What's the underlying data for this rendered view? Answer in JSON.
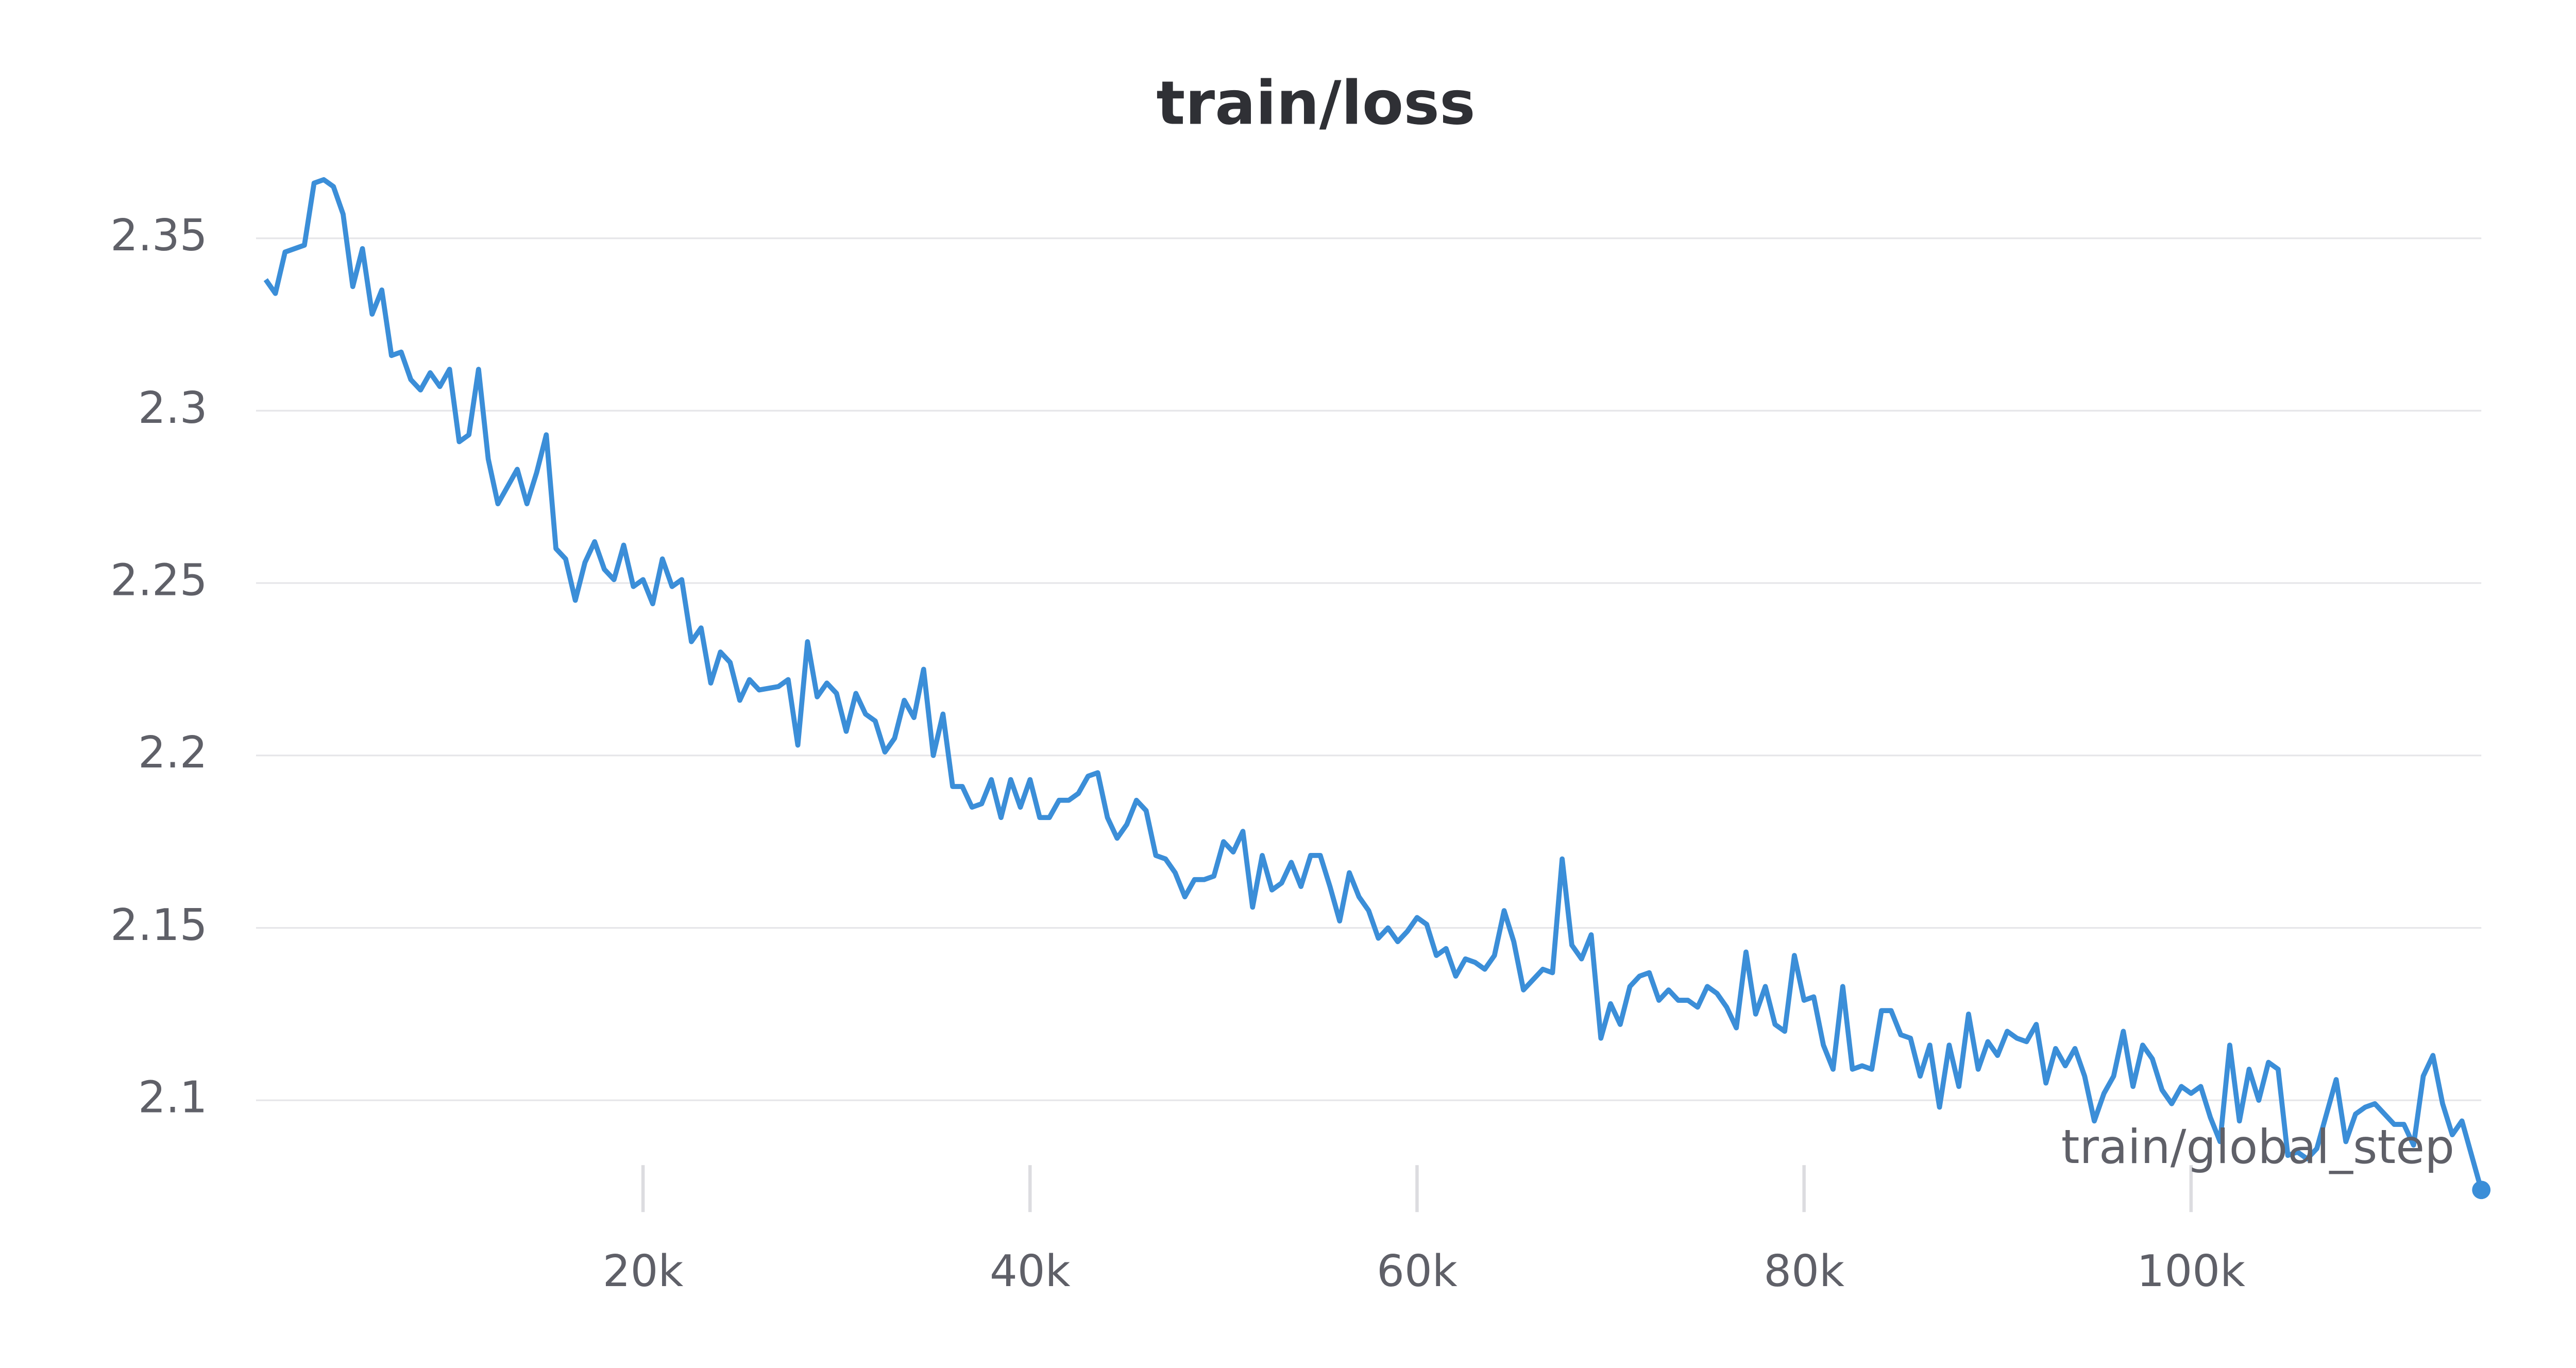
{
  "chart_data": {
    "type": "line",
    "title": "train/loss",
    "x_label": "train/global_step",
    "x": [
      500,
      1000,
      1500,
      2500,
      3000,
      3500,
      4000,
      4500,
      5000,
      5500,
      6000,
      6500,
      7000,
      7500,
      8000,
      8500,
      9000,
      9500,
      10000,
      10500,
      11000,
      11500,
      12000,
      12500,
      13000,
      13500,
      14000,
      14500,
      15000,
      15500,
      16000,
      16500,
      17000,
      17500,
      18000,
      18500,
      19000,
      19500,
      20000,
      20500,
      21000,
      21500,
      22000,
      22500,
      23000,
      23500,
      24000,
      24500,
      25000,
      25500,
      26000,
      27000,
      27500,
      28000,
      28500,
      29000,
      29500,
      30000,
      30500,
      31000,
      31500,
      32000,
      32500,
      33000,
      33500,
      34000,
      34500,
      35000,
      35500,
      36000,
      36500,
      37000,
      37500,
      38000,
      38500,
      39000,
      39500,
      40000,
      40500,
      41000,
      41500,
      42000,
      42500,
      43000,
      43500,
      44000,
      44500,
      45000,
      45500,
      46000,
      46500,
      47000,
      47500,
      48000,
      48500,
      49000,
      49500,
      50000,
      50500,
      51000,
      51500,
      52000,
      52500,
      53000,
      53500,
      54000,
      54500,
      55000,
      55500,
      56000,
      56500,
      57000,
      57500,
      58000,
      58500,
      59000,
      59500,
      60000,
      60500,
      61000,
      61500,
      62000,
      62500,
      63000,
      63500,
      64000,
      64500,
      65000,
      65500,
      66000,
      66500,
      67000,
      67500,
      68000,
      68500,
      69000,
      69500,
      70000,
      70500,
      71000,
      71500,
      72000,
      72500,
      73000,
      73500,
      74000,
      74500,
      75000,
      75500,
      76000,
      76500,
      77000,
      77500,
      78000,
      78500,
      79000,
      79500,
      80000,
      80500,
      81000,
      81500,
      82000,
      82500,
      83000,
      83500,
      84000,
      84500,
      85000,
      85500,
      86000,
      86500,
      87000,
      87500,
      88000,
      88500,
      89000,
      89500,
      90000,
      90500,
      91000,
      91500,
      92000,
      92500,
      93000,
      93500,
      94000,
      94500,
      95000,
      95500,
      96000,
      96500,
      97000,
      97500,
      98000,
      98500,
      99000,
      99500,
      100000,
      100500,
      101000,
      101500,
      102000,
      102500,
      103000,
      103500,
      104000,
      104500,
      105000,
      105500,
      106000,
      106500,
      107000,
      107500,
      108000,
      108500,
      109000,
      109500,
      110000,
      110500,
      111000,
      111500,
      112000,
      112500,
      113000,
      113500,
      114000,
      115000
    ],
    "series": [
      {
        "name": "train/loss",
        "color": "#3b8ed8",
        "values": [
          2.338,
          2.334,
          2.346,
          2.348,
          2.366,
          2.367,
          2.365,
          2.357,
          2.336,
          2.347,
          2.328,
          2.335,
          2.316,
          2.317,
          2.309,
          2.306,
          2.311,
          2.307,
          2.312,
          2.291,
          2.293,
          2.312,
          2.286,
          2.273,
          2.278,
          2.283,
          2.273,
          2.282,
          2.293,
          2.26,
          2.257,
          2.245,
          2.256,
          2.262,
          2.254,
          2.251,
          2.261,
          2.249,
          2.251,
          2.244,
          2.257,
          2.249,
          2.251,
          2.233,
          2.237,
          2.221,
          2.23,
          2.227,
          2.216,
          2.222,
          2.219,
          2.22,
          2.222,
          2.203,
          2.233,
          2.217,
          2.221,
          2.218,
          2.207,
          2.218,
          2.212,
          2.21,
          2.201,
          2.205,
          2.216,
          2.211,
          2.225,
          2.2,
          2.212,
          2.191,
          2.191,
          2.185,
          2.186,
          2.193,
          2.182,
          2.193,
          2.185,
          2.193,
          2.182,
          2.182,
          2.187,
          2.187,
          2.189,
          2.194,
          2.195,
          2.182,
          2.176,
          2.18,
          2.187,
          2.184,
          2.171,
          2.17,
          2.166,
          2.159,
          2.164,
          2.164,
          2.165,
          2.175,
          2.172,
          2.178,
          2.156,
          2.171,
          2.161,
          2.163,
          2.169,
          2.162,
          2.171,
          2.171,
          2.162,
          2.152,
          2.166,
          2.159,
          2.155,
          2.147,
          2.15,
          2.146,
          2.149,
          2.153,
          2.151,
          2.142,
          2.144,
          2.136,
          2.141,
          2.14,
          2.138,
          2.142,
          2.155,
          2.146,
          2.132,
          2.135,
          2.138,
          2.137,
          2.17,
          2.145,
          2.141,
          2.148,
          2.118,
          2.128,
          2.122,
          2.133,
          2.136,
          2.137,
          2.129,
          2.132,
          2.129,
          2.129,
          2.127,
          2.133,
          2.131,
          2.127,
          2.121,
          2.143,
          2.125,
          2.133,
          2.122,
          2.12,
          2.142,
          2.129,
          2.13,
          2.116,
          2.109,
          2.133,
          2.109,
          2.11,
          2.109,
          2.126,
          2.126,
          2.119,
          2.118,
          2.107,
          2.116,
          2.098,
          2.116,
          2.104,
          2.125,
          2.109,
          2.117,
          2.113,
          2.12,
          2.118,
          2.117,
          2.122,
          2.105,
          2.115,
          2.11,
          2.115,
          2.107,
          2.094,
          2.102,
          2.107,
          2.12,
          2.104,
          2.116,
          2.112,
          2.103,
          2.099,
          2.104,
          2.102,
          2.104,
          2.095,
          2.088,
          2.116,
          2.094,
          2.109,
          2.1,
          2.111,
          2.109,
          2.084,
          2.085,
          2.083,
          2.086,
          2.096,
          2.106,
          2.088,
          2.096,
          2.098,
          2.099,
          2.096,
          2.093,
          2.093,
          2.087,
          2.107,
          2.113,
          2.099,
          2.09,
          2.094,
          2.074
        ]
      }
    ],
    "xlim": [
      0,
      115000
    ],
    "ylim": [
      2.07,
      2.37
    ],
    "xticks": [
      {
        "value": 20000,
        "label": "20k"
      },
      {
        "value": 40000,
        "label": "40k"
      },
      {
        "value": 60000,
        "label": "60k"
      },
      {
        "value": 80000,
        "label": "80k"
      },
      {
        "value": 100000,
        "label": "100k"
      }
    ],
    "yticks": [
      2.1,
      2.15,
      2.2,
      2.25,
      2.3,
      2.35
    ],
    "grid": true
  }
}
